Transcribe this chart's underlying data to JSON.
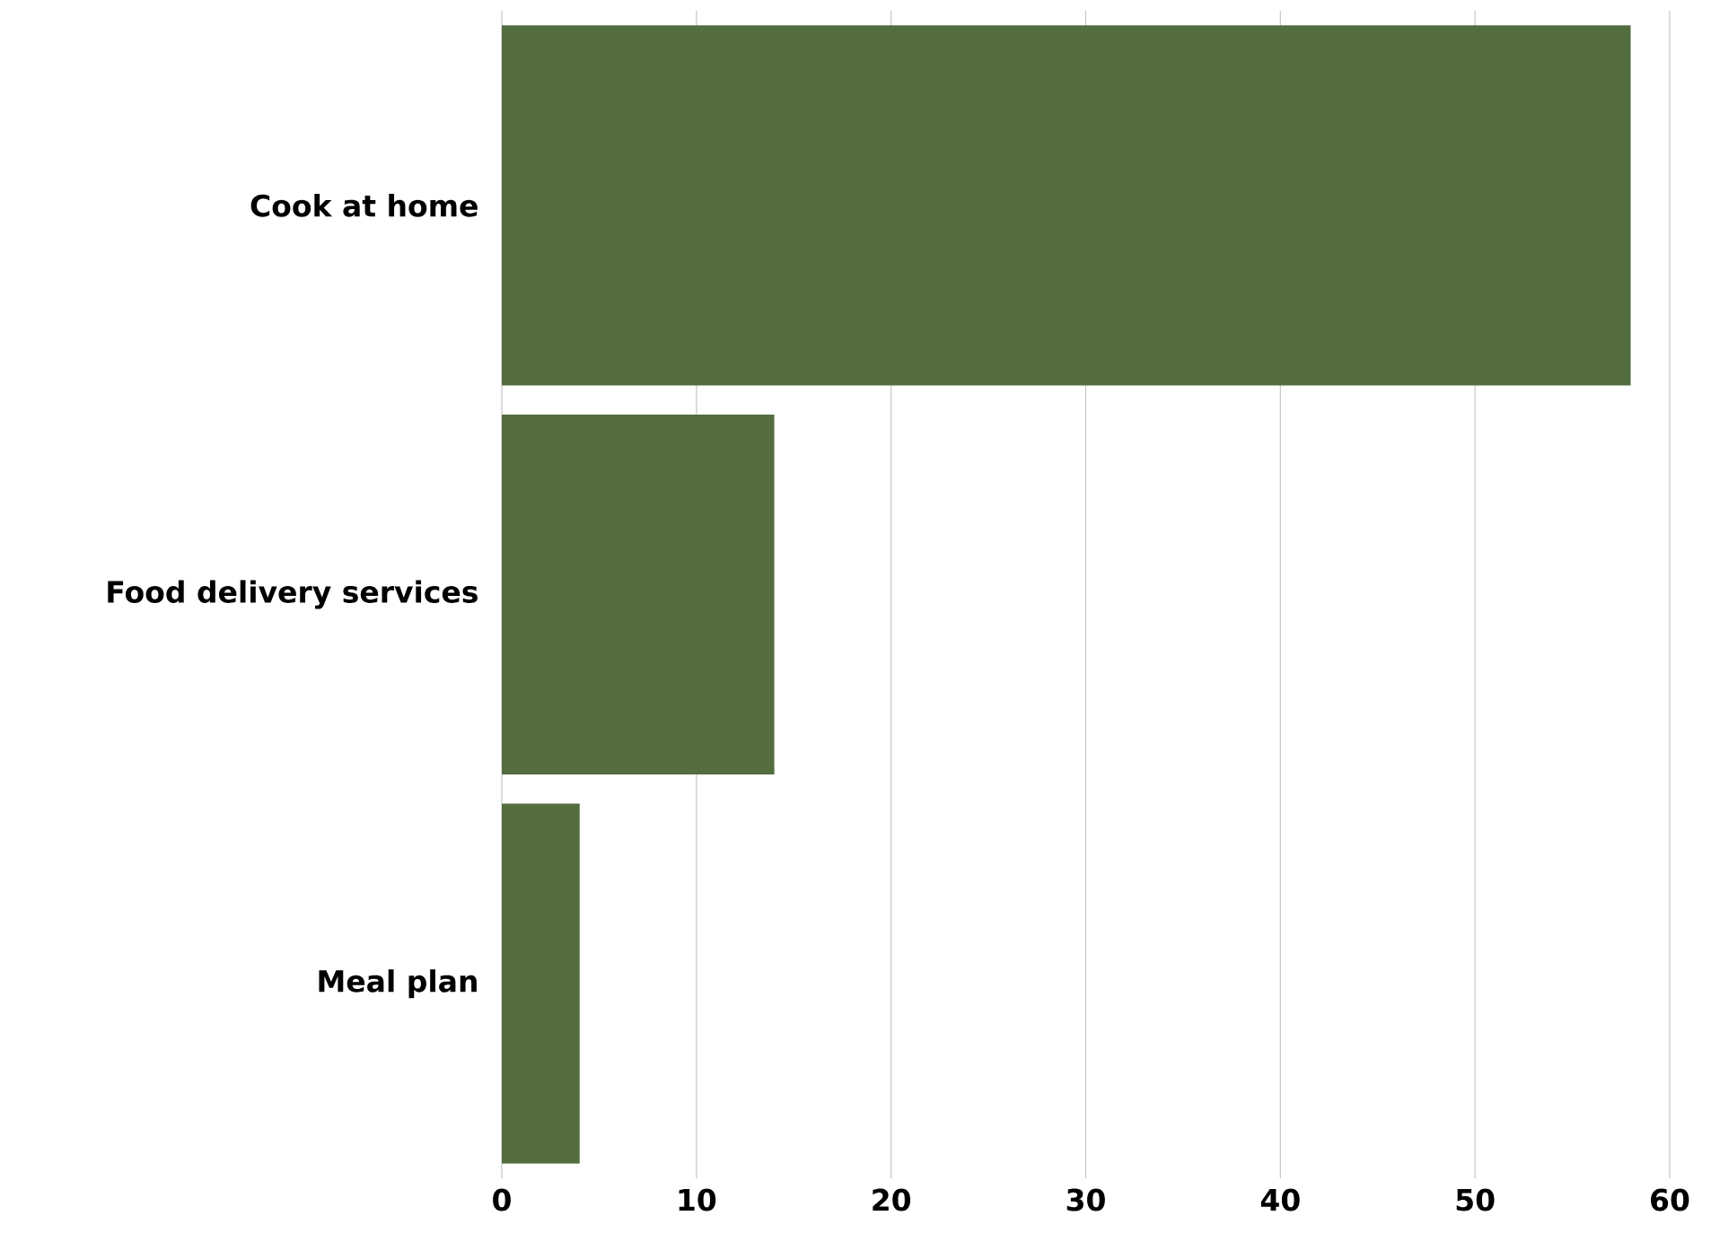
{
  "chart_data": {
    "type": "bar",
    "orientation": "horizontal",
    "categories": [
      "Cook at home",
      "Food delivery services",
      "Meal plan"
    ],
    "values": [
      58,
      14,
      4
    ],
    "color": "#536d3f",
    "xlim": [
      0,
      60
    ],
    "xticks": [
      0,
      10,
      20,
      30,
      40,
      50,
      60
    ],
    "grid": "x"
  }
}
